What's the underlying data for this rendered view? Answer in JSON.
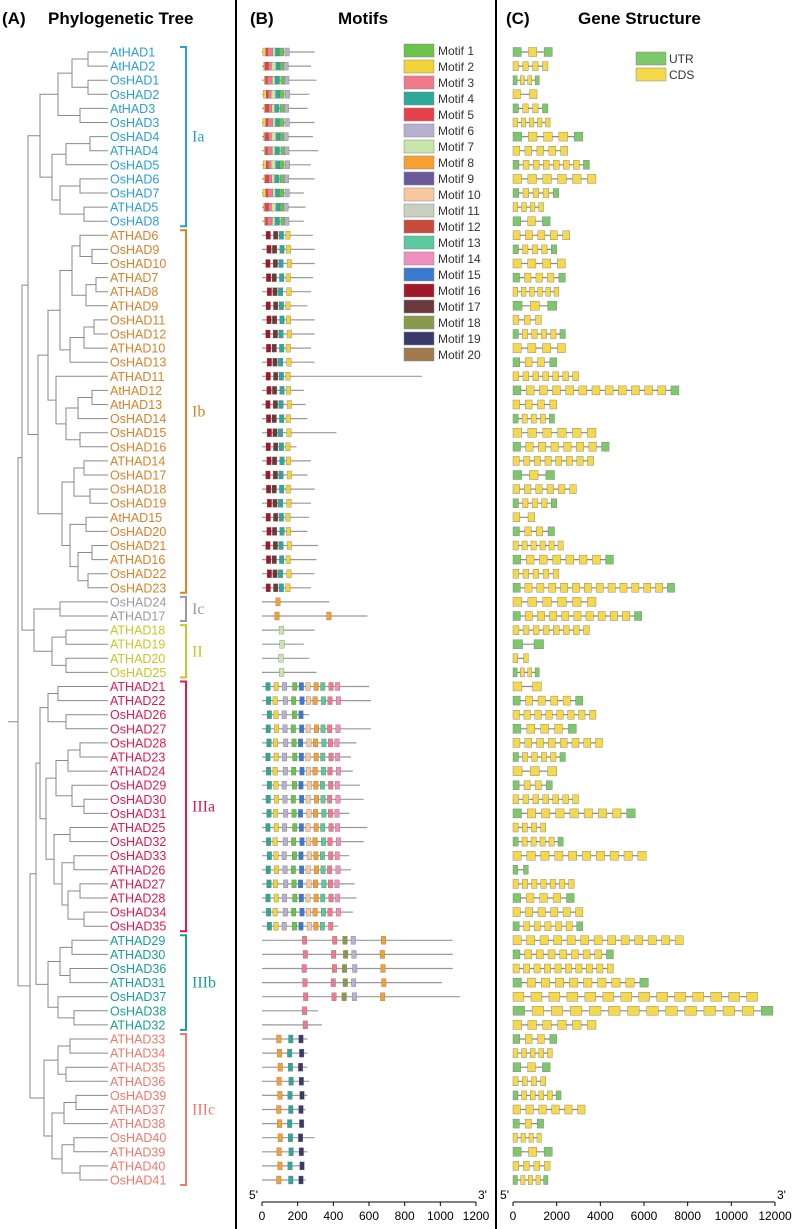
{
  "panels": {
    "a": {
      "letter": "(A)",
      "title": "Phylogenetic Tree"
    },
    "b": {
      "letter": "(B)",
      "title": "Motifs"
    },
    "c": {
      "letter": "(C)",
      "title": "Gene Structure"
    }
  },
  "genes": [
    "AtHAD1",
    "AtHAD2",
    "OsHAD1",
    "OsHAD2",
    "AtHAD3",
    "OsHAD3",
    "OsHAD4",
    "ATHAD4",
    "OsHAD5",
    "OsHAD6",
    "OsHAD7",
    "ATHAD5",
    "OsHAD8",
    "ATHAD6",
    "OsHAD9",
    "OsHAD10",
    "ATHAD7",
    "ATHAD8",
    "ATHAD9",
    "OsHAD11",
    "OsHAD12",
    "ATHAD10",
    "OsHAD13",
    "ATHAD11",
    "AtHAD12",
    "AtHAD13",
    "OsHAD14",
    "OsHAD15",
    "OsHAD16",
    "ATHAD14",
    "OsHAD17",
    "OsHAD18",
    "OsHAD19",
    "AtHAD15",
    "OsHAD20",
    "OsHAD21",
    "ATHAD16",
    "OsHAD22",
    "OsHAD23",
    "OsHAD24",
    "ATHAD17",
    "ATHAD18",
    "ATHAD19",
    "ATHAD20",
    "OsHAD25",
    "ATHAD21",
    "ATHAD22",
    "OsHAD26",
    "OsHAD27",
    "OsHAD28",
    "ATHAD23",
    "ATHAD24",
    "OsHAD29",
    "OsHAD30",
    "OsHAD31",
    "ATHAD25",
    "OsHAD32",
    "OsHAD33",
    "ATHAD26",
    "ATHAD27",
    "ATHAD28",
    "OsHAD34",
    "OsHAD35",
    "ATHAD29",
    "ATHAD30",
    "OsHAD36",
    "ATHAD31",
    "OsHAD37",
    "OsHAD38",
    "ATHAD32",
    "ATHAD33",
    "ATHAD34",
    "ATHAD35",
    "ATHAD36",
    "OsHAD39",
    "ATHAD37",
    "ATHAD38",
    "OsHAD40",
    "ATHAD39",
    "ATHAD40",
    "OsHAD41"
  ],
  "groups": [
    {
      "label": "Ia",
      "color": "#2a9fd6",
      "start": 0,
      "end": 12
    },
    {
      "label": "Ib",
      "color": "#d9822b",
      "start": 13,
      "end": 38
    },
    {
      "label": "Ic",
      "color": "#9a9a9a",
      "start": 39,
      "end": 40
    },
    {
      "label": "II",
      "color": "#c8c62a",
      "start": 41,
      "end": 44
    },
    {
      "label": "IIIa",
      "color": "#e01a4f",
      "start": 45,
      "end": 62
    },
    {
      "label": "IIIb",
      "color": "#1a9e96",
      "start": 63,
      "end": 69
    },
    {
      "label": "IIIc",
      "color": "#f07a6a",
      "start": 70,
      "end": 80
    }
  ],
  "motif_legend": [
    "Motif 1",
    "Motif 2",
    "Motif 3",
    "Motif 4",
    "Motif 5",
    "Motif 6",
    "Motif 7",
    "Motif 8",
    "Motif 9",
    "Motif 10",
    "Motif 11",
    "Motif 12",
    "Motif 13",
    "Motif 14",
    "Motif 15",
    "Motif 16",
    "Motif 17",
    "Motif 18",
    "Motif 19",
    "Motif 20"
  ],
  "motif_colors": [
    "#6cc24a",
    "#f2d33a",
    "#f07a8a",
    "#2fa89a",
    "#e8404a",
    "#b8b0d0",
    "#c8e6a8",
    "#f5a030",
    "#6a5a9a",
    "#f8c8a0",
    "#c8d0c0",
    "#c84a3a",
    "#5cc8a0",
    "#f090c0",
    "#3a7ad0",
    "#a0182a",
    "#6a3a3a",
    "#8a9a4a",
    "#3a3a6a",
    "#a07a4a"
  ],
  "structure_legend": [
    {
      "label": "UTR",
      "color": "#7cc86a"
    },
    {
      "label": "CDS",
      "color": "#f5d94a"
    }
  ],
  "motif_axis": {
    "min": 0,
    "max": 1200,
    "ticks": [
      0,
      200,
      400,
      600,
      800,
      1000,
      1200
    ],
    "left_end": "5'",
    "right_end": "3'"
  },
  "gene_axis": {
    "min": 0,
    "max": 12000,
    "ticks": [
      0,
      2000,
      4000,
      6000,
      8000,
      10000,
      12000
    ],
    "left_end": "5'",
    "right_end": "3'"
  }
}
